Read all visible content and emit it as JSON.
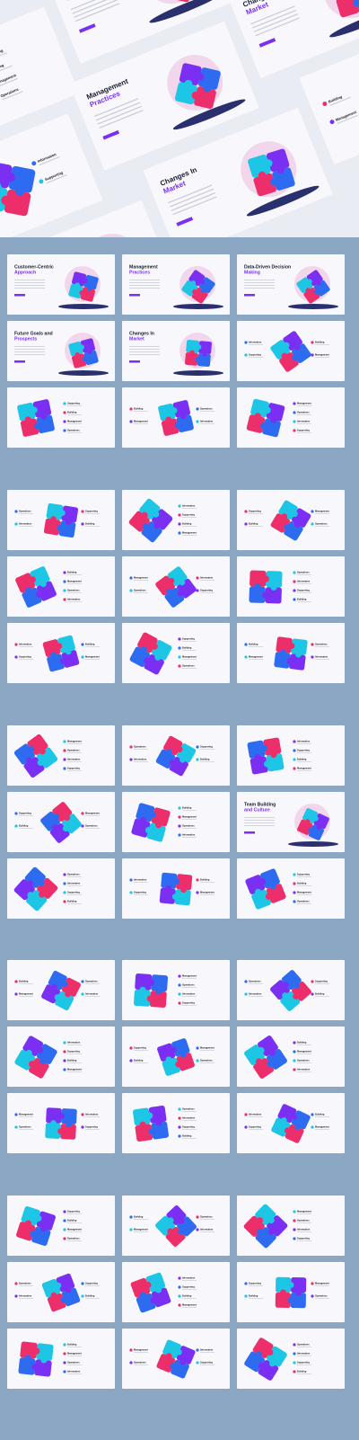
{
  "title_slides": [
    {
      "main": "Customer-Centric",
      "accent": "Approach"
    },
    {
      "main": "Management",
      "accent": "Practices"
    },
    {
      "main": "Data-Driven Decision",
      "accent": "Making"
    },
    {
      "main": "Future Goals and",
      "accent": "Prospects"
    },
    {
      "main": "Changes In",
      "accent": "Market"
    },
    {
      "main": "Team Building",
      "accent": "and Culture"
    }
  ],
  "item_labels": [
    "Information",
    "Supporting",
    "Building",
    "Management",
    "Operations"
  ]
}
